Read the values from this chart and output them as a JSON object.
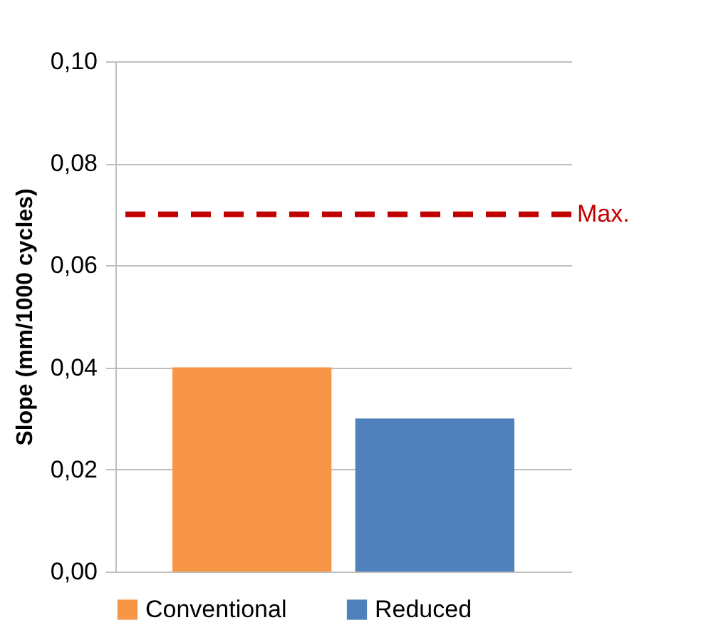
{
  "chart_data": {
    "type": "bar",
    "ylabel": "Slope (mm/1000 cycles)",
    "categories": [
      null
    ],
    "series": [
      {
        "name": "Conventional",
        "color": "#f79646",
        "values": [
          0.04
        ]
      },
      {
        "name": "Reduced",
        "color": "#4f81bd",
        "values": [
          0.03
        ]
      }
    ],
    "ylim": [
      0,
      0.1
    ],
    "yticks": [
      {
        "value": 0,
        "label": "0,00"
      },
      {
        "value": 0.02,
        "label": "0,02"
      },
      {
        "value": 0.04,
        "label": "0,04"
      },
      {
        "value": 0.06,
        "label": "0,06"
      },
      {
        "value": 0.08,
        "label": "0,08"
      },
      {
        "value": 0.1,
        "label": "0,10"
      }
    ],
    "grid": "y",
    "legend": "bottom",
    "tick_labels": "y",
    "ref_lines": [
      {
        "axis": "y",
        "value": 0.07,
        "label": "Max.",
        "color": "#c00000",
        "line_style": "dashed"
      }
    ]
  }
}
